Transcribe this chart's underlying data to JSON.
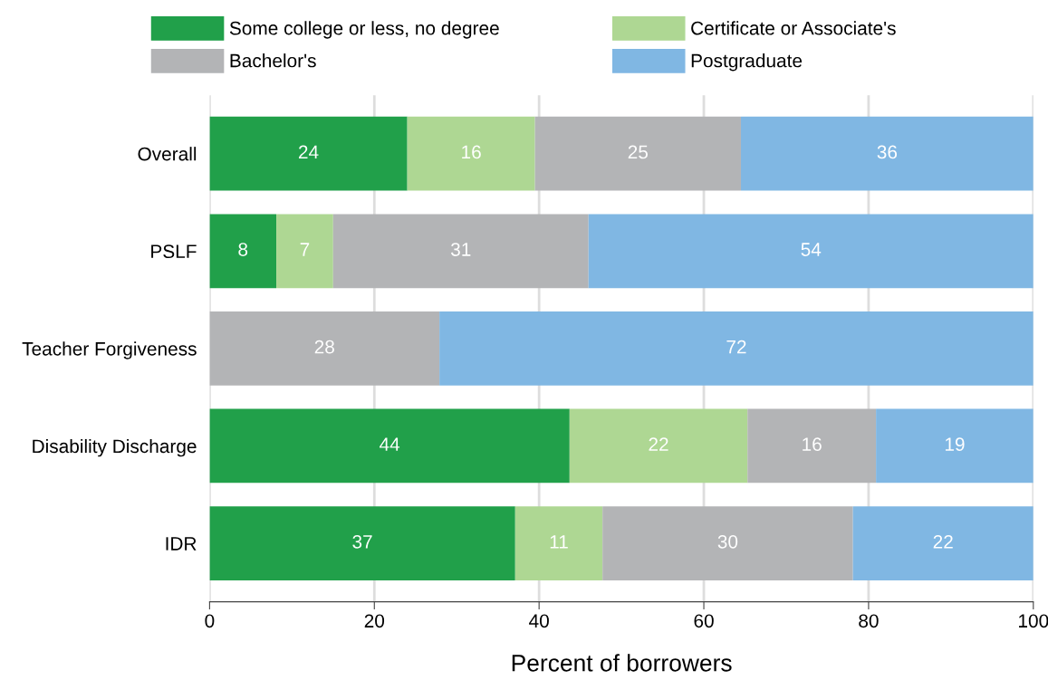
{
  "chart_data": {
    "type": "bar",
    "orientation": "horizontal",
    "stacked": true,
    "categories": [
      "Overall",
      "PSLF",
      "Teacher Forgiveness",
      "Disability Discharge",
      "IDR"
    ],
    "xlabel": "Percent of borrowers",
    "xlim": [
      0,
      100
    ],
    "xticks": [
      0,
      20,
      40,
      60,
      80,
      100
    ],
    "grid": "x",
    "legend": "top",
    "series": [
      {
        "name": "Some college or less, no degree",
        "color": "#21a04a",
        "values": [
          24,
          8.1,
          null,
          43.7,
          37.1
        ],
        "value_labels": [
          "24",
          "8",
          null,
          "44",
          "37"
        ]
      },
      {
        "name": "Certificate or Associate's",
        "color": "#aed793",
        "values": [
          15.5,
          6.9,
          null,
          21.6,
          10.6
        ],
        "value_labels": [
          "16",
          "7",
          null,
          "22",
          "11"
        ]
      },
      {
        "name": "Bachelor's",
        "color": "#b3b4b6",
        "values": [
          25,
          31,
          27.9,
          15.6,
          30.4
        ],
        "value_labels": [
          "25",
          "31",
          "28",
          "16",
          "30"
        ]
      },
      {
        "name": "Postgraduate",
        "color": "#80b7e3",
        "values": [
          35.5,
          54,
          72.1,
          19.1,
          21.9
        ],
        "value_labels": [
          "36",
          "54",
          "72",
          "19",
          "22"
        ]
      }
    ]
  }
}
